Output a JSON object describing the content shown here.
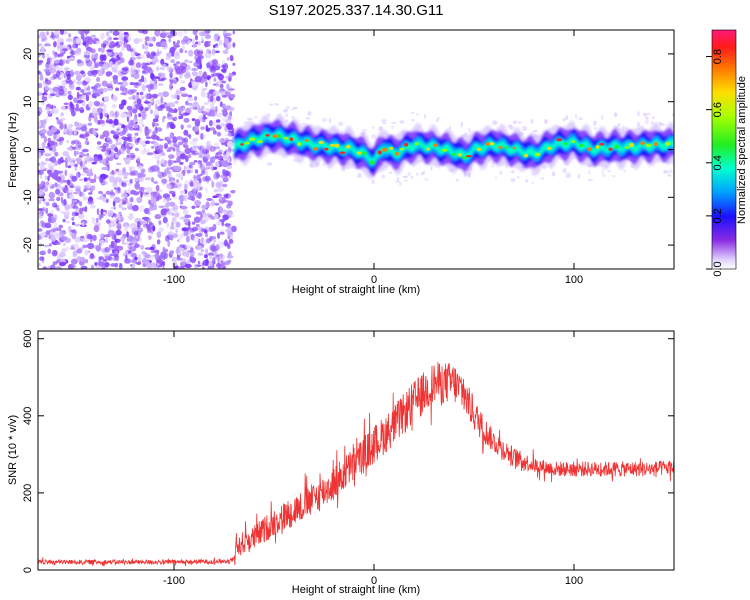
{
  "title": "S197.2025.337.14.30.G11",
  "chart_data": [
    {
      "type": "heatmap",
      "xlabel": "Height of straight line (km)",
      "ylabel": "Frequency (Hz)",
      "xlim": [
        -168,
        150
      ],
      "ylim": [
        -25,
        25
      ],
      "x_ticks": [
        -100,
        0,
        100
      ],
      "y_ticks": [
        -20,
        -10,
        0,
        10,
        20
      ],
      "noise_region": {
        "x_range": [
          -168,
          -70
        ]
      },
      "signal_band": {
        "x_range": [
          -70,
          150
        ],
        "center_frequency": 0.5,
        "half_width": 2,
        "center_trace": [
          [
            -70,
            0.5
          ],
          [
            -60,
            2
          ],
          [
            -50,
            3
          ],
          [
            -40,
            2
          ],
          [
            -30,
            1
          ],
          [
            -20,
            0.5
          ],
          [
            -10,
            0
          ],
          [
            -3,
            -1.5
          ],
          [
            0,
            -2.5
          ],
          [
            5,
            0.5
          ],
          [
            10,
            -1
          ],
          [
            20,
            1
          ],
          [
            30,
            0.5
          ],
          [
            40,
            -0.5
          ],
          [
            45,
            -1.5
          ],
          [
            50,
            0
          ],
          [
            60,
            1
          ],
          [
            70,
            0
          ],
          [
            80,
            -1
          ],
          [
            90,
            1
          ],
          [
            100,
            1.5
          ],
          [
            110,
            0
          ],
          [
            120,
            0.5
          ],
          [
            130,
            0.5
          ],
          [
            140,
            1
          ],
          [
            150,
            1
          ]
        ]
      },
      "colorbar": {
        "label": "Normalized spectral amplitude",
        "range": [
          0,
          0.9
        ],
        "ticks": [
          0.0,
          0.2,
          0.4,
          0.6,
          0.8
        ]
      }
    },
    {
      "type": "line",
      "xlabel": "Height of straight line (km)",
      "ylabel": "SNR (10 * v/v)",
      "xlim": [
        -168,
        150
      ],
      "ylim": [
        0,
        620
      ],
      "x_ticks": [
        -100,
        0,
        100
      ],
      "y_ticks": [
        0,
        200,
        400,
        600
      ],
      "series": [
        {
          "color": "#ee3333",
          "envelope": [
            [
              -168,
              20
            ],
            [
              -140,
              20
            ],
            [
              -100,
              20
            ],
            [
              -72,
              22
            ],
            [
              -68,
              60
            ],
            [
              -60,
              80
            ],
            [
              -50,
              120
            ],
            [
              -40,
              150
            ],
            [
              -30,
              180
            ],
            [
              -20,
              220
            ],
            [
              -10,
              270
            ],
            [
              0,
              320
            ],
            [
              10,
              370
            ],
            [
              20,
              430
            ],
            [
              30,
              480
            ],
            [
              40,
              480
            ],
            [
              45,
              450
            ],
            [
              50,
              400
            ],
            [
              55,
              360
            ],
            [
              60,
              330
            ],
            [
              70,
              290
            ],
            [
              80,
              270
            ],
            [
              90,
              260
            ],
            [
              100,
              260
            ],
            [
              120,
              260
            ],
            [
              140,
              260
            ],
            [
              150,
              265
            ]
          ],
          "noise_amplitude": [
            [
              -168,
              12
            ],
            [
              -72,
              12
            ],
            [
              -68,
              60
            ],
            [
              -40,
              80
            ],
            [
              -20,
              90
            ],
            [
              0,
              100
            ],
            [
              20,
              110
            ],
            [
              40,
              110
            ],
            [
              60,
              60
            ],
            [
              80,
              40
            ],
            [
              150,
              40
            ]
          ]
        }
      ]
    }
  ]
}
